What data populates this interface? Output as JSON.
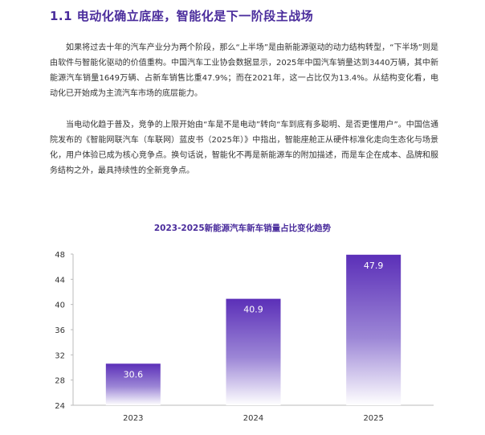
{
  "section": {
    "title": "1.1 电动化确立底座，智能化是下一阶段主战场"
  },
  "paragraphs": [
    "如果将过去十年的汽车产业分为两个阶段，那么“上半场”是由新能源驱动的动力结构转型，“下半场”则是由软件与智能化驱动的价值重构。中国汽车工业协会数据显示，2025年中国汽车销量达到3440万辆，其中新能源汽车销量1649万辆、占新车销售比重47.9%；而在2021年，这一占比仅为13.4%。从结构变化看，电动化已开始成为主流汽车市场的底层能力。",
    "当电动化趋于普及，竞争的上限开始由“车是不是电动”转向“车到底有多聪明、是否更懂用户”。中国信通院发布的《智能网联汽车（车联网）蓝皮书（2025年）》中指出，智能座舱正从硬件标准化走向生态化与场景化，用户体验已成为核心竞争点。换句话说，智能化不再是新能源车的附加描述，而是车企在成本、品牌和服务结构之外，最具持续性的全新竞争点。"
  ],
  "chart_data": {
    "type": "bar",
    "title": "2023-2025新能源汽车新车销量占比变化趋势",
    "categories": [
      "2023",
      "2024",
      "2025"
    ],
    "values": [
      30.6,
      40.9,
      47.9
    ],
    "value_labels": [
      "30.6",
      "40.9",
      "47.9"
    ],
    "yticks": [
      "24",
      "28",
      "32",
      "36",
      "40",
      "44",
      "48"
    ],
    "ylim": [
      24,
      48
    ],
    "xlabel": "",
    "ylabel": "",
    "grid": false,
    "bar_color_top": "#5b2fb8",
    "bar_color_bottom": "#ffffff"
  }
}
